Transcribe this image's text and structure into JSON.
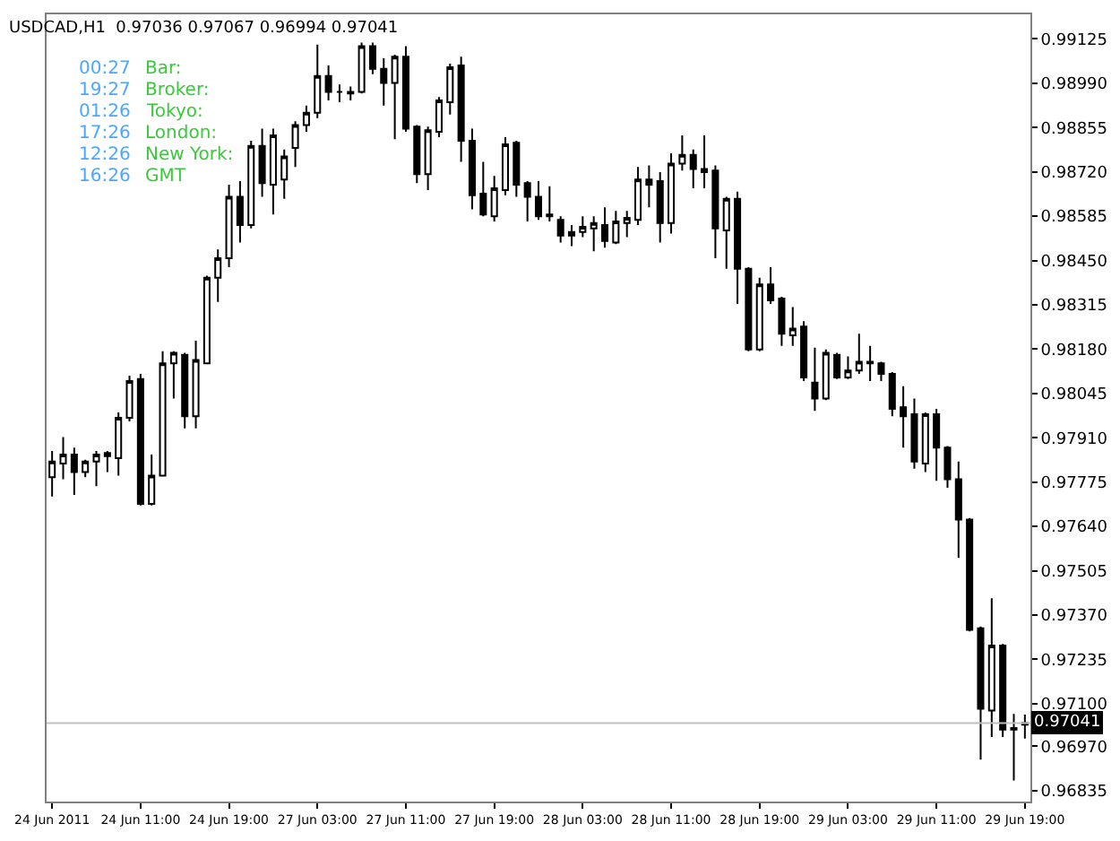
{
  "chart_data": {
    "type": "candlestick",
    "title": "USDCAD,H1  0.97036 0.97067 0.96994 0.97041",
    "annotations": [
      "00:27",
      "Bar:",
      "19:27",
      "Broker:",
      "01:26",
      "Tokyo:",
      "17:26",
      "London:",
      "12:26",
      "New York:",
      "16:26",
      "GMT"
    ],
    "categories": [
      "24 Jun 2011",
      null,
      null,
      null,
      null,
      null,
      null,
      null,
      "24 Jun 11:00",
      null,
      null,
      null,
      null,
      null,
      null,
      null,
      "24 Jun 19:00",
      null,
      null,
      null,
      null,
      null,
      null,
      null,
      "27 Jun 03:00",
      null,
      null,
      null,
      null,
      null,
      null,
      null,
      "27 Jun 11:00",
      null,
      null,
      null,
      null,
      null,
      null,
      null,
      "27 Jun 19:00",
      null,
      null,
      null,
      null,
      null,
      null,
      null,
      "28 Jun 03:00",
      null,
      null,
      null,
      null,
      null,
      null,
      null,
      "28 Jun 11:00",
      null,
      null,
      null,
      null,
      null,
      null,
      null,
      "28 Jun 19:00",
      null,
      null,
      null,
      null,
      null,
      null,
      null,
      "29 Jun 03:00",
      null,
      null,
      null,
      null,
      null,
      null,
      null,
      "29 Jun 11:00",
      null,
      null,
      null,
      null,
      null,
      null,
      null,
      "29 Jun 19:00"
    ],
    "ohlc": [
      [
        0.9779,
        0.9787,
        0.97731,
        0.97838
      ],
      [
        0.97832,
        0.97912,
        0.97784,
        0.97859
      ],
      [
        0.97859,
        0.9788,
        0.97736,
        0.97806
      ],
      [
        0.97806,
        0.97843,
        0.9779,
        0.97838
      ],
      [
        0.97838,
        0.9787,
        0.97763,
        0.97859
      ],
      [
        0.97854,
        0.9787,
        0.97806,
        0.97864
      ],
      [
        0.97848,
        0.97987,
        0.97795,
        0.97971
      ],
      [
        0.97971,
        0.98099,
        0.9796,
        0.98083
      ],
      [
        0.98089,
        0.98105,
        0.97704,
        0.97709
      ],
      [
        0.97709,
        0.97859,
        0.97704,
        0.97795
      ],
      [
        0.97795,
        0.98174,
        0.97795,
        0.98137
      ],
      [
        0.98137,
        0.98174,
        0.9803,
        0.98169
      ],
      [
        0.98163,
        0.98169,
        0.97939,
        0.97976
      ],
      [
        0.97976,
        0.98206,
        0.97939,
        0.98147
      ],
      [
        0.98137,
        0.98404,
        0.98137,
        0.98398
      ],
      [
        0.98398,
        0.98484,
        0.98324,
        0.98457
      ],
      [
        0.98457,
        0.98681,
        0.9843,
        0.98644
      ],
      [
        0.98644,
        0.98692,
        0.98505,
        0.98558
      ],
      [
        0.98558,
        0.98815,
        0.98548,
        0.98799
      ],
      [
        0.98799,
        0.98852,
        0.98644,
        0.98686
      ],
      [
        0.98681,
        0.98852,
        0.9859,
        0.98831
      ],
      [
        0.98697,
        0.98788,
        0.98638,
        0.98767
      ],
      [
        0.98793,
        0.98874,
        0.98735,
        0.98863
      ],
      [
        0.98863,
        0.98922,
        0.98842,
        0.989
      ],
      [
        0.989,
        0.99108,
        0.98884,
        0.99012
      ],
      [
        0.99012,
        0.99044,
        0.98938,
        0.98964
      ],
      [
        0.98964,
        0.98986,
        0.98932,
        0.98964
      ],
      [
        0.98964,
        0.9898,
        0.98938,
        0.98959
      ],
      [
        0.98964,
        0.99114,
        0.98959,
        0.99103
      ],
      [
        0.99103,
        0.99114,
        0.99018,
        0.99034
      ],
      [
        0.99034,
        0.99066,
        0.98922,
        0.98991
      ],
      [
        0.98991,
        0.99077,
        0.9882,
        0.99071
      ],
      [
        0.99071,
        0.99103,
        0.98842,
        0.98852
      ],
      [
        0.98858,
        0.98863,
        0.98686,
        0.98713
      ],
      [
        0.98713,
        0.98858,
        0.98665,
        0.98847
      ],
      [
        0.98842,
        0.98948,
        0.98826,
        0.98938
      ],
      [
        0.98932,
        0.9905,
        0.98895,
        0.99039
      ],
      [
        0.99044,
        0.99071,
        0.98751,
        0.98815
      ],
      [
        0.98815,
        0.98852,
        0.98606,
        0.98649
      ],
      [
        0.98654,
        0.98751,
        0.98585,
        0.9859
      ],
      [
        0.98585,
        0.98708,
        0.98569,
        0.9867
      ],
      [
        0.98665,
        0.98826,
        0.98649,
        0.98804
      ],
      [
        0.98809,
        0.98815,
        0.98644,
        0.98681
      ],
      [
        0.98686,
        0.98692,
        0.98569,
        0.98644
      ],
      [
        0.98644,
        0.98692,
        0.98574,
        0.98585
      ],
      [
        0.9859,
        0.98676,
        0.98569,
        0.98585
      ],
      [
        0.98574,
        0.98585,
        0.98505,
        0.98526
      ],
      [
        0.98526,
        0.98558,
        0.98494,
        0.98537
      ],
      [
        0.98537,
        0.98585,
        0.98521,
        0.98553
      ],
      [
        0.98548,
        0.98585,
        0.98478,
        0.98564
      ],
      [
        0.98558,
        0.98612,
        0.98489,
        0.9851
      ],
      [
        0.98505,
        0.98601,
        0.985,
        0.98569
      ],
      [
        0.98564,
        0.98601,
        0.98521,
        0.9858
      ],
      [
        0.98574,
        0.98735,
        0.98558,
        0.98697
      ],
      [
        0.98697,
        0.9874,
        0.98612,
        0.98681
      ],
      [
        0.98692,
        0.98719,
        0.98505,
        0.98564
      ],
      [
        0.98564,
        0.98777,
        0.98532,
        0.98745
      ],
      [
        0.98745,
        0.98831,
        0.98724,
        0.98772
      ],
      [
        0.98772,
        0.98788,
        0.9867,
        0.98729
      ],
      [
        0.98729,
        0.98831,
        0.9867,
        0.98719
      ],
      [
        0.98724,
        0.9874,
        0.98457,
        0.98548
      ],
      [
        0.98542,
        0.98644,
        0.98425,
        0.98638
      ],
      [
        0.98638,
        0.9866,
        0.98318,
        0.98425
      ],
      [
        0.98425,
        0.9843,
        0.98174,
        0.98179
      ],
      [
        0.98179,
        0.98398,
        0.98174,
        0.98377
      ],
      [
        0.98377,
        0.9843,
        0.98318,
        0.98329
      ],
      [
        0.98334,
        0.9834,
        0.9819,
        0.98227
      ],
      [
        0.98222,
        0.98308,
        0.9819,
        0.98243
      ],
      [
        0.98249,
        0.98265,
        0.98083,
        0.98094
      ],
      [
        0.98078,
        0.98185,
        0.97992,
        0.9803
      ],
      [
        0.9803,
        0.98179,
        0.98025,
        0.98169
      ],
      [
        0.98163,
        0.98169,
        0.98089,
        0.98094
      ],
      [
        0.98094,
        0.98158,
        0.98089,
        0.98115
      ],
      [
        0.98115,
        0.98227,
        0.98105,
        0.98142
      ],
      [
        0.98142,
        0.9819,
        0.98083,
        0.98137
      ],
      [
        0.98137,
        0.98142,
        0.98083,
        0.98105
      ],
      [
        0.98105,
        0.9811,
        0.97976,
        0.97998
      ],
      [
        0.98003,
        0.98067,
        0.9788,
        0.97976
      ],
      [
        0.97982,
        0.9803,
        0.97816,
        0.97838
      ],
      [
        0.97832,
        0.97987,
        0.97806,
        0.97982
      ],
      [
        0.97982,
        0.97998,
        0.97779,
        0.9788
      ],
      [
        0.9788,
        0.97885,
        0.97758,
        0.97784
      ],
      [
        0.97784,
        0.97838,
        0.97544,
        0.97661
      ],
      [
        0.97661,
        0.97666,
        0.9732,
        0.97325
      ],
      [
        0.9733,
        0.97335,
        0.9693,
        0.97085
      ],
      [
        0.97079,
        0.97421,
        0.96999,
        0.97277
      ],
      [
        0.97277,
        0.97282,
        0.96999,
        0.97021
      ],
      [
        0.97021,
        0.97069,
        0.96866,
        0.97026
      ],
      [
        0.97036,
        0.97067,
        0.96994,
        0.97041
      ]
    ],
    "ylim": [
      0.96802,
      0.992
    ],
    "yticks": [
      0.99125,
      {
        "value": 0.9899,
        "label": "0.98990"
      },
      0.98855,
      {
        "value": 0.9872,
        "label": "0.98720"
      },
      0.98585,
      {
        "value": 0.9845,
        "label": "0.98450"
      },
      0.98315,
      {
        "value": 0.9818,
        "label": "0.98180"
      },
      0.98045,
      {
        "value": 0.9791,
        "label": "0.97910"
      },
      0.97775,
      {
        "value": 0.9764,
        "label": "0.97640"
      },
      0.97505,
      {
        "value": 0.9737,
        "label": "0.97370"
      },
      0.97235,
      {
        "value": 0.971,
        "label": "0.97100"
      },
      {
        "value": 0.9697,
        "label": "0.96970"
      },
      0.96835
    ],
    "ref_lines": [
      {
        "axis": "y",
        "value": 0.97041,
        "label": "0.97041",
        "color": "#c0c0c0"
      }
    ]
  }
}
